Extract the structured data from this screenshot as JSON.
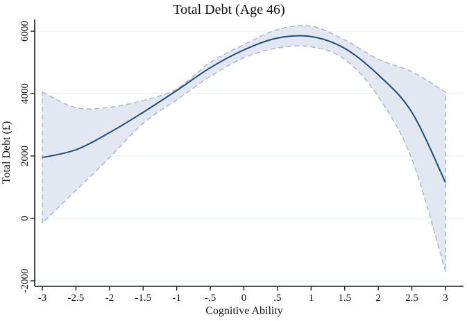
{
  "chart_data": {
    "type": "line",
    "title": "Total Debt (Age 46)",
    "xlabel": "Cognitive Ability",
    "ylabel": "Total Debt (£)",
    "x": [
      -3,
      -2.5,
      -2,
      -1.5,
      -1,
      -0.5,
      0,
      0.5,
      1,
      1.5,
      2,
      2.5,
      3
    ],
    "series": [
      {
        "name": "fitted-line",
        "values": [
          1950,
          2200,
          2750,
          3400,
          4100,
          4830,
          5400,
          5780,
          5830,
          5450,
          4600,
          3400,
          1150
        ]
      },
      {
        "name": "ci-upper",
        "values": [
          4050,
          3550,
          3560,
          3780,
          4150,
          5000,
          5570,
          6050,
          6160,
          5720,
          5100,
          4700,
          4050
        ]
      },
      {
        "name": "ci-lower",
        "values": [
          -150,
          900,
          1950,
          3050,
          3800,
          4550,
          5150,
          5460,
          5500,
          5100,
          3900,
          1900,
          -1700
        ]
      }
    ],
    "xlim": [
      -3,
      3
    ],
    "ylim": [
      -2200,
      6400
    ],
    "xticks": {
      "values": [
        -3,
        -2.5,
        -2,
        -1.5,
        -1,
        -0.5,
        0,
        0.5,
        1,
        1.5,
        2,
        2.5,
        3
      ],
      "labels": [
        "-3",
        "-2.5",
        "-2",
        "-1.5",
        "-1",
        "-.5",
        "0",
        ".5",
        "1",
        "1.5",
        "2",
        "2.5",
        "3"
      ]
    },
    "yticks": {
      "values": [
        -2000,
        0,
        2000,
        4000,
        6000
      ],
      "labels": [
        "-2000",
        "0",
        "2000",
        "4000",
        "6000"
      ]
    },
    "grid": "horizontal-only",
    "legend_position": "none",
    "colors": {
      "title": "#1f3864",
      "line": "#1d4a77",
      "band_fill": "#e2e7f1",
      "band_edge": "#a3b4ca",
      "gridline": "#e6f1ef",
      "axis": "#1a1a1a",
      "text": "#111111"
    }
  }
}
